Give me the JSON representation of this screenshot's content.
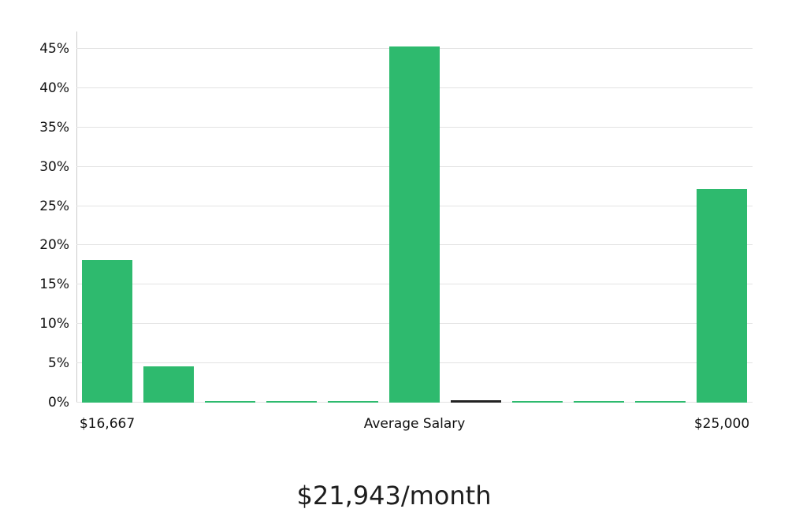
{
  "chart_data": {
    "type": "bar",
    "title": "$21,943/month",
    "xlabel": "",
    "ylabel": "",
    "ylim": [
      0,
      47
    ],
    "grid": "horizontal",
    "legend": "none",
    "y_ticks": [
      0,
      5,
      10,
      15,
      20,
      25,
      30,
      35,
      40,
      45
    ],
    "y_tick_labels": [
      "0%",
      "5%",
      "10%",
      "15%",
      "20%",
      "25%",
      "30%",
      "35%",
      "40%",
      "45%"
    ],
    "values": [
      18.1,
      4.6,
      0.2,
      0.2,
      0.2,
      45.3,
      0.3,
      0.2,
      0.2,
      0.2,
      27.2
    ],
    "highlight_index": 6,
    "x_tick_labels": [
      {
        "label": "$16,667",
        "bar_index": 0
      },
      {
        "label": "Average Salary",
        "bar_index": 5
      },
      {
        "label": "$25,000",
        "bar_index": 10
      }
    ],
    "colors": {
      "bar": "#2eba6e",
      "average_marker": "#222222",
      "grid": "#e3e3e3",
      "axis": "#cccccc",
      "text": "#111111"
    }
  }
}
